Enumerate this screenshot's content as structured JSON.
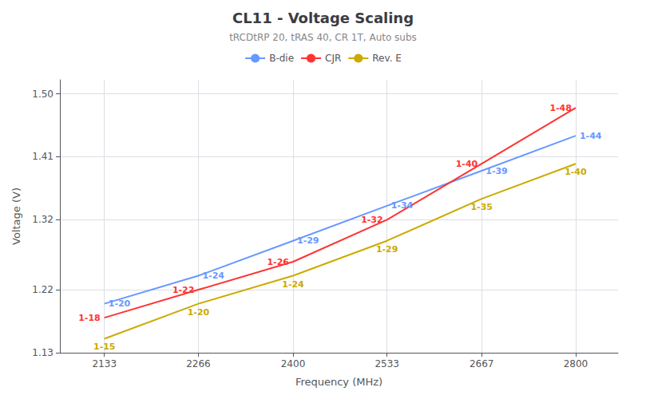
{
  "chart_data": {
    "type": "line",
    "title": "CL11 - Voltage Scaling",
    "subtitle": "tRCDtRP 20, tRAS 40, CR 1T, Auto subs",
    "xlabel": "Frequency (MHz)",
    "ylabel": "Voltage (V)",
    "x": [
      2133,
      2266,
      2400,
      2533,
      2667,
      2800
    ],
    "series": [
      {
        "name": "B-die",
        "color": "#6699ff",
        "values": [
          1.2,
          1.24,
          1.29,
          1.34,
          1.39,
          1.44
        ],
        "value_labels": [
          "1-20",
          "1-24",
          "1-29",
          "1-34",
          "1-39",
          "1-44"
        ]
      },
      {
        "name": "CJR",
        "color": "#ff3333",
        "values": [
          1.18,
          1.22,
          1.26,
          1.32,
          1.4,
          1.48
        ],
        "value_labels": [
          "1-18",
          "1-22",
          "1-26",
          "1-32",
          "1-40",
          "1-48"
        ]
      },
      {
        "name": "Rev. E",
        "color": "#ccaa00",
        "values": [
          1.15,
          1.2,
          1.24,
          1.29,
          1.35,
          1.4
        ],
        "value_labels": [
          "1-15",
          "1-20",
          "1-24",
          "1-29",
          "1-35",
          "1-40"
        ]
      }
    ],
    "xlim": [
      2070,
      2860
    ],
    "xticks": [
      2133,
      2266,
      2400,
      2533,
      2667,
      2800
    ],
    "ylim": [
      1.13,
      1.52
    ],
    "yticks": [
      1.13,
      1.22,
      1.32,
      1.41,
      {
        "value": 1.5,
        "label": "1.50"
      }
    ],
    "grid": true,
    "legend": "top",
    "data_labels": true
  }
}
